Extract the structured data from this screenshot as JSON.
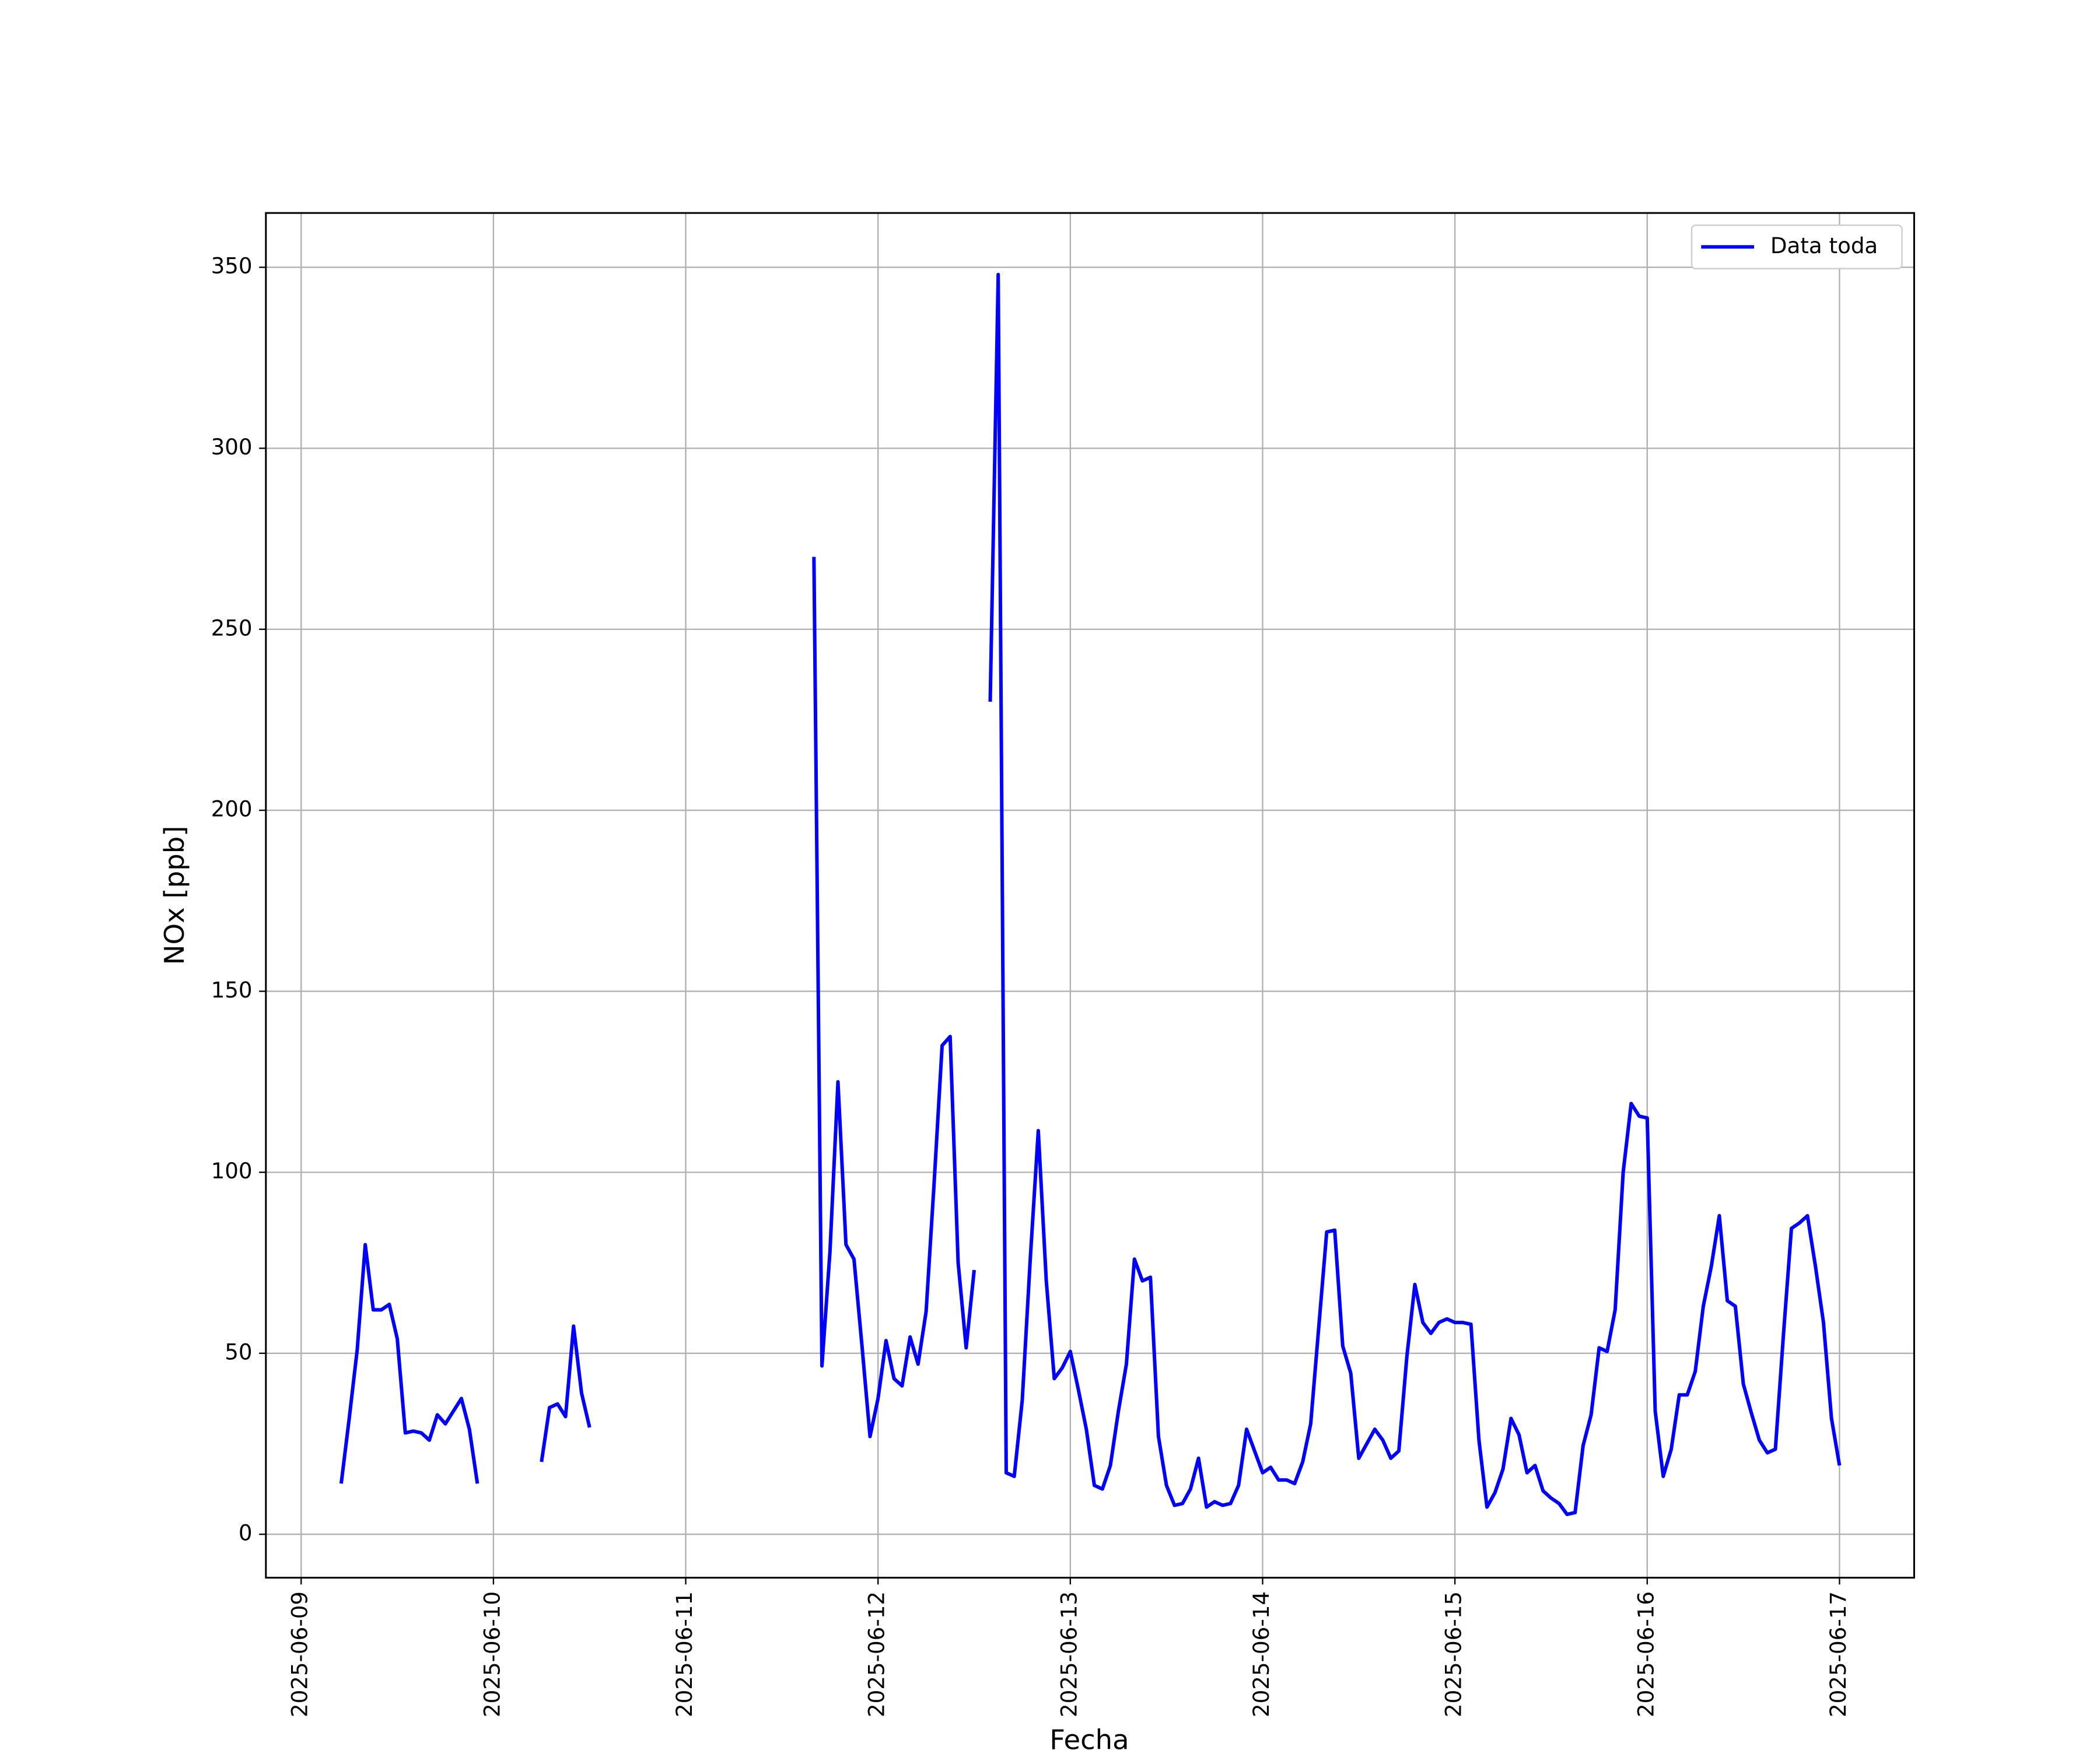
{
  "chart_data": {
    "type": "line",
    "xlabel": "Fecha",
    "ylabel": "NOx [ppb]",
    "xlim": [
      "2025-06-08 19:36",
      "2025-06-17 09:19"
    ],
    "xticks": [
      "2025-06-09",
      "2025-06-10",
      "2025-06-11",
      "2025-06-12",
      "2025-06-13",
      "2025-06-14",
      "2025-06-15",
      "2025-06-16",
      "2025-06-17"
    ],
    "ylim": [
      -12,
      365
    ],
    "yticks": [
      0,
      50,
      100,
      150,
      200,
      250,
      300,
      350
    ],
    "grid": true,
    "legend": "upper right",
    "x": [
      "2025-06-09 05:00",
      "2025-06-09 06:00",
      "2025-06-09 07:00",
      "2025-06-09 08:00",
      "2025-06-09 09:00",
      "2025-06-09 10:00",
      "2025-06-09 11:00",
      "2025-06-09 12:00",
      "2025-06-09 13:00",
      "2025-06-09 14:00",
      "2025-06-09 15:00",
      "2025-06-09 16:00",
      "2025-06-09 17:00",
      "2025-06-09 18:00",
      "2025-06-09 19:00",
      "2025-06-09 20:00",
      "2025-06-09 21:00",
      "2025-06-09 22:00",
      "2025-06-10 00:00",
      "2025-06-10 06:00",
      "2025-06-10 07:00",
      "2025-06-10 08:00",
      "2025-06-10 09:00",
      "2025-06-10 10:00",
      "2025-06-10 11:00",
      "2025-06-10 12:00",
      "2025-06-11 00:00",
      "2025-06-11 16:00",
      "2025-06-11 17:00",
      "2025-06-11 18:00",
      "2025-06-11 19:00",
      "2025-06-11 20:00",
      "2025-06-11 21:00",
      "2025-06-11 22:00",
      "2025-06-11 23:00",
      "2025-06-12 00:00",
      "2025-06-12 01:00",
      "2025-06-12 02:00",
      "2025-06-12 03:00",
      "2025-06-12 04:00",
      "2025-06-12 05:00",
      "2025-06-12 06:00",
      "2025-06-12 07:00",
      "2025-06-12 08:00",
      "2025-06-12 09:00",
      "2025-06-12 10:00",
      "2025-06-12 11:00",
      "2025-06-12 12:00",
      "2025-06-12 13:00",
      "2025-06-12 14:00",
      "2025-06-12 15:00",
      "2025-06-12 16:00",
      "2025-06-12 17:00",
      "2025-06-12 18:00",
      "2025-06-12 19:00",
      "2025-06-12 20:00",
      "2025-06-12 21:00",
      "2025-06-12 22:00",
      "2025-06-12 23:00",
      "2025-06-13 00:00",
      "2025-06-13 01:00",
      "2025-06-13 02:00",
      "2025-06-13 03:00",
      "2025-06-13 04:00",
      "2025-06-13 05:00",
      "2025-06-13 06:00",
      "2025-06-13 07:00",
      "2025-06-13 08:00",
      "2025-06-13 09:00",
      "2025-06-13 10:00",
      "2025-06-13 11:00",
      "2025-06-13 12:00",
      "2025-06-13 13:00",
      "2025-06-13 14:00",
      "2025-06-13 15:00",
      "2025-06-13 16:00",
      "2025-06-13 17:00",
      "2025-06-13 18:00",
      "2025-06-13 19:00",
      "2025-06-13 20:00",
      "2025-06-13 21:00",
      "2025-06-13 22:00",
      "2025-06-13 23:00",
      "2025-06-14 00:00",
      "2025-06-14 01:00",
      "2025-06-14 02:00",
      "2025-06-14 03:00",
      "2025-06-14 04:00",
      "2025-06-14 05:00",
      "2025-06-14 06:00",
      "2025-06-14 07:00",
      "2025-06-14 08:00",
      "2025-06-14 09:00",
      "2025-06-14 10:00",
      "2025-06-14 11:00",
      "2025-06-14 12:00",
      "2025-06-14 13:00",
      "2025-06-14 14:00",
      "2025-06-14 15:00",
      "2025-06-14 16:00",
      "2025-06-14 17:00",
      "2025-06-14 18:00",
      "2025-06-14 19:00",
      "2025-06-14 20:00",
      "2025-06-14 21:00",
      "2025-06-14 22:00",
      "2025-06-14 23:00",
      "2025-06-15 00:00",
      "2025-06-15 01:00",
      "2025-06-15 02:00",
      "2025-06-15 03:00",
      "2025-06-15 04:00",
      "2025-06-15 05:00",
      "2025-06-15 06:00",
      "2025-06-15 07:00",
      "2025-06-15 08:00",
      "2025-06-15 09:00",
      "2025-06-15 10:00",
      "2025-06-15 11:00",
      "2025-06-15 12:00",
      "2025-06-15 13:00",
      "2025-06-15 14:00",
      "2025-06-15 15:00",
      "2025-06-15 16:00",
      "2025-06-15 17:00",
      "2025-06-15 18:00",
      "2025-06-15 19:00",
      "2025-06-15 20:00",
      "2025-06-15 21:00",
      "2025-06-15 22:00",
      "2025-06-15 23:00",
      "2025-06-16 00:00",
      "2025-06-16 01:00",
      "2025-06-16 02:00",
      "2025-06-16 03:00",
      "2025-06-16 04:00",
      "2025-06-16 05:00",
      "2025-06-16 06:00",
      "2025-06-16 07:00",
      "2025-06-16 08:00",
      "2025-06-16 09:00",
      "2025-06-16 10:00",
      "2025-06-16 11:00",
      "2025-06-16 12:00",
      "2025-06-16 13:00",
      "2025-06-16 14:00",
      "2025-06-16 15:00",
      "2025-06-16 16:00",
      "2025-06-16 17:00",
      "2025-06-16 18:00",
      "2025-06-16 19:00",
      "2025-06-16 20:00",
      "2025-06-16 21:00",
      "2025-06-16 22:00",
      "2025-06-16 23:00",
      "2025-06-17 00:00"
    ],
    "series": [
      {
        "name": "Data toda",
        "color": "#0000ff",
        "values": [
          14,
          32,
          51,
          80,
          62,
          62,
          63.5,
          54,
          28,
          28.5,
          28,
          26,
          33,
          30.5,
          34,
          37.5,
          29,
          14,
          null,
          20,
          35,
          36,
          32.5,
          57.5,
          39,
          29.5,
          null,
          270,
          46.5,
          78,
          125,
          80,
          76,
          52,
          27,
          37.5,
          53.5,
          43,
          41,
          54.5,
          47,
          61.5,
          97,
          135,
          137.5,
          75,
          51.5,
          73,
          null,
          230,
          348,
          17,
          16,
          37,
          76,
          111.5,
          70,
          43,
          46,
          50.5,
          40,
          29,
          13.5,
          12.5,
          19,
          34,
          47,
          76,
          70,
          71,
          27,
          13.5,
          8,
          8.5,
          12.5,
          21,
          7.5,
          9,
          8,
          8.5,
          13.5,
          29,
          23,
          17,
          18.5,
          15,
          15,
          14,
          20,
          30.5,
          57,
          83.5,
          84,
          52,
          44.5,
          21,
          25,
          29,
          26,
          21,
          23,
          49,
          69,
          58.5,
          55.5,
          58.5,
          59.5,
          58.5,
          58.5,
          58,
          26,
          7.5,
          11.5,
          18,
          32,
          27.5,
          17,
          19,
          12,
          10,
          8.5,
          5.5,
          6,
          24.5,
          33,
          51.5,
          50.5,
          62,
          100,
          119,
          115.5,
          115,
          34,
          16,
          23.5,
          38.5,
          38.5,
          45,
          63,
          74,
          88,
          64.5,
          63,
          41.5,
          33.5,
          26,
          22.5,
          23.5,
          55,
          84.5,
          86,
          88,
          74,
          58.5,
          32,
          19
        ]
      }
    ]
  }
}
